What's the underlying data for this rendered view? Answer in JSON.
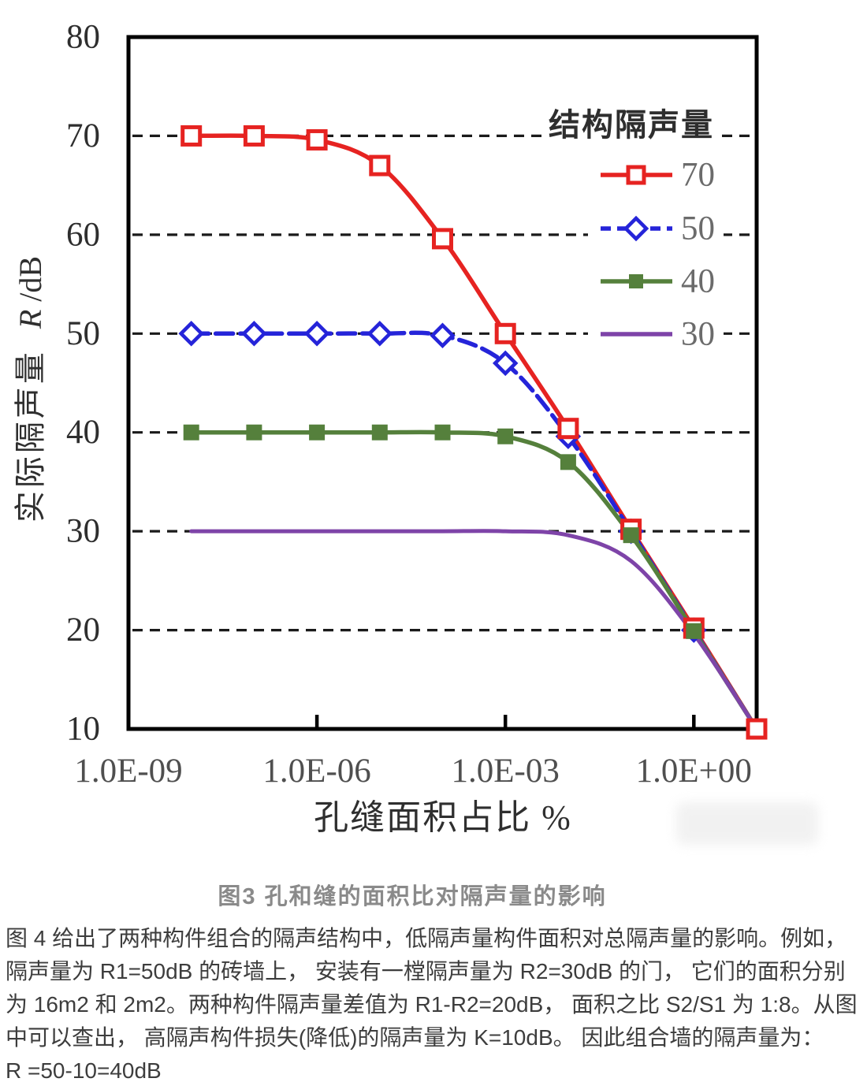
{
  "figure": {
    "caption": "图3  孔和缝的面积比对隔声量的影响"
  },
  "chart_data": {
    "type": "line",
    "title": "",
    "x_axis": {
      "label": "孔缝面积占比 %",
      "scale": "log10",
      "tick_labels": [
        "1.0E-09",
        "1.0E-06",
        "1.0E-03",
        "1.0E+00"
      ],
      "tick_exponents": [
        -9,
        -6,
        -3,
        0
      ],
      "range_exponents": [
        -9,
        1
      ]
    },
    "y_axis": {
      "label_cn": "实际隔声量",
      "label_symbol": "R",
      "label_unit": "/dB",
      "ticks": [
        80,
        70,
        60,
        50,
        40,
        30,
        20,
        10
      ],
      "gridlines": [
        70,
        60,
        50,
        40,
        30,
        20
      ],
      "range": [
        10,
        80
      ]
    },
    "legend": {
      "title": "结构隔声量",
      "position": "top-right-inside",
      "items": [
        "70",
        "50",
        "40",
        "30"
      ]
    },
    "x_exponents": [
      -8,
      -7,
      -6,
      -5,
      -4,
      -3,
      -2,
      -1,
      0,
      1
    ],
    "series": [
      {
        "name": "70",
        "color": "#e62321",
        "line": "solid",
        "marker": "open-square",
        "values": [
          70,
          70,
          69.6,
          67,
          59.6,
          50,
          40.4,
          30.2,
          20.2,
          10
        ]
      },
      {
        "name": "50",
        "color": "#2524d9",
        "line": "dashed",
        "marker": "open-diamond",
        "values": [
          50,
          50,
          50,
          50,
          49.8,
          47,
          39.6,
          30,
          20,
          10
        ]
      },
      {
        "name": "40",
        "color": "#55803c",
        "line": "solid",
        "marker": "filled-square",
        "values": [
          40,
          40,
          40,
          40,
          40,
          39.6,
          37,
          29.6,
          19.9,
          10
        ]
      },
      {
        "name": "30",
        "color": "#7e44a8",
        "line": "solid",
        "marker": "none",
        "values": [
          30,
          30,
          30,
          30,
          30,
          30,
          29.6,
          27,
          19.6,
          10
        ]
      }
    ]
  },
  "paragraph": {
    "lines": [
      "图 4 给出了两种构件组合的隔声结构中，低隔声量构件面积对总隔声量的影响。例如，",
      "隔声量为 R1=50dB 的砖墙上， 安装有一樘隔声量为 R2=30dB 的门， 它们的面积分别",
      "为 16m2 和 2m2。两种构件隔声量差值为 R1-R2=20dB， 面积之比 S2/S1 为 1:8。从图",
      "中可以查出， 高隔声构件损失(降低)的隔声量为 K=10dB。 因此组合墙的隔声量为：",
      "R =50-10=40dB"
    ]
  },
  "style": {
    "grid_color": "#1a1a1a",
    "axis_color": "#000000",
    "y_tick_label_color": "#2e2e2e",
    "x_tick_label_color": "#4f4f4f",
    "axis_title_color": "#2f2f2f",
    "legend_label_color": "#6b6b6b",
    "legend_title_color": "#2e2e2e"
  }
}
